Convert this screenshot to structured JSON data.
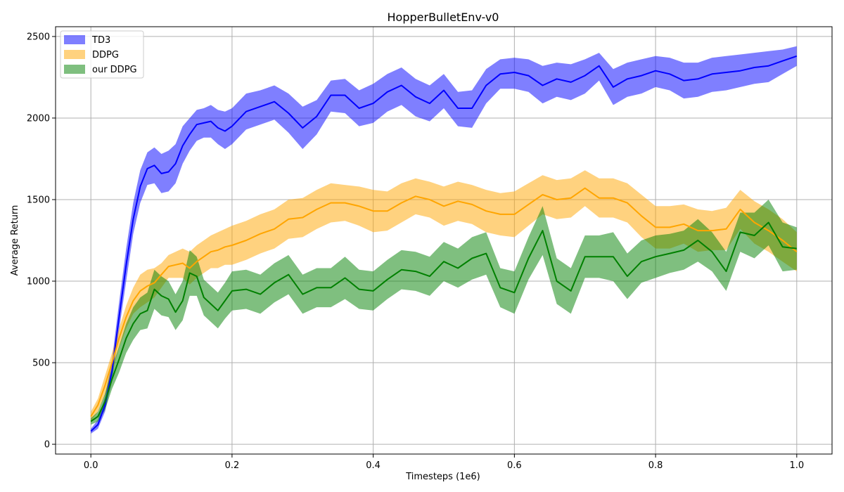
{
  "chart_data": {
    "type": "area",
    "title": "HopperBulletEnv-v0",
    "xlabel": "Timesteps (1e6)",
    "ylabel": "Average Return",
    "xlim": [
      -0.05,
      1.05
    ],
    "ylim": [
      -60,
      2560
    ],
    "xticks": [
      0.0,
      0.2,
      0.4,
      0.6,
      0.8,
      1.0
    ],
    "xtick_labels": [
      "0.0",
      "0.2",
      "0.4",
      "0.6",
      "0.8",
      "1.0"
    ],
    "yticks": [
      0,
      500,
      1000,
      1500,
      2000,
      2500
    ],
    "ytick_labels": [
      "0",
      "500",
      "1000",
      "1500",
      "2000",
      "2500"
    ],
    "grid": true,
    "legend_position": "top-left",
    "series": [
      {
        "name": "TD3",
        "color": "#0000ff",
        "band_color": "#0000ff",
        "band_opacity": 0.5,
        "x": [
          0.0,
          0.01,
          0.02,
          0.03,
          0.04,
          0.05,
          0.06,
          0.07,
          0.08,
          0.09,
          0.1,
          0.11,
          0.12,
          0.13,
          0.14,
          0.15,
          0.16,
          0.17,
          0.18,
          0.19,
          0.2,
          0.22,
          0.24,
          0.26,
          0.28,
          0.3,
          0.32,
          0.34,
          0.36,
          0.38,
          0.4,
          0.42,
          0.44,
          0.46,
          0.48,
          0.5,
          0.52,
          0.54,
          0.56,
          0.58,
          0.6,
          0.62,
          0.64,
          0.66,
          0.68,
          0.7,
          0.72,
          0.74,
          0.76,
          0.78,
          0.8,
          0.82,
          0.84,
          0.86,
          0.88,
          0.9,
          0.92,
          0.94,
          0.96,
          0.98,
          1.0
        ],
        "y": [
          80,
          120,
          240,
          450,
          780,
          1100,
          1380,
          1580,
          1690,
          1710,
          1660,
          1670,
          1720,
          1830,
          1900,
          1960,
          1970,
          1980,
          1940,
          1920,
          1950,
          2040,
          2070,
          2100,
          2030,
          1940,
          2010,
          2140,
          2140,
          2060,
          2090,
          2160,
          2200,
          2130,
          2090,
          2170,
          2060,
          2060,
          2200,
          2270,
          2280,
          2260,
          2200,
          2240,
          2220,
          2260,
          2320,
          2190,
          2240,
          2260,
          2290,
          2270,
          2230,
          2240,
          2270,
          2280,
          2290,
          2310,
          2320,
          2350,
          2380
        ],
        "upper": [
          95,
          150,
          290,
          520,
          870,
          1200,
          1480,
          1680,
          1790,
          1820,
          1780,
          1800,
          1840,
          1950,
          2000,
          2050,
          2060,
          2080,
          2050,
          2040,
          2060,
          2150,
          2170,
          2200,
          2150,
          2070,
          2110,
          2230,
          2240,
          2170,
          2210,
          2270,
          2310,
          2240,
          2200,
          2270,
          2160,
          2170,
          2300,
          2360,
          2370,
          2360,
          2320,
          2340,
          2330,
          2360,
          2400,
          2300,
          2340,
          2360,
          2380,
          2370,
          2340,
          2340,
          2370,
          2380,
          2390,
          2400,
          2410,
          2420,
          2440
        ],
        "lower": [
          65,
          95,
          200,
          390,
          700,
          1000,
          1290,
          1480,
          1590,
          1600,
          1540,
          1550,
          1600,
          1720,
          1800,
          1860,
          1880,
          1880,
          1840,
          1810,
          1840,
          1930,
          1960,
          1990,
          1910,
          1810,
          1900,
          2040,
          2030,
          1950,
          1970,
          2040,
          2080,
          2010,
          1980,
          2060,
          1950,
          1940,
          2090,
          2180,
          2180,
          2160,
          2090,
          2130,
          2110,
          2150,
          2230,
          2080,
          2130,
          2150,
          2190,
          2170,
          2120,
          2130,
          2160,
          2170,
          2190,
          2210,
          2220,
          2270,
          2320
        ]
      },
      {
        "name": "DDPG",
        "color": "#ffa500",
        "band_color": "#ffa500",
        "band_opacity": 0.5,
        "x": [
          0.0,
          0.01,
          0.02,
          0.03,
          0.04,
          0.05,
          0.06,
          0.07,
          0.08,
          0.09,
          0.1,
          0.11,
          0.12,
          0.13,
          0.14,
          0.15,
          0.16,
          0.17,
          0.18,
          0.19,
          0.2,
          0.22,
          0.24,
          0.26,
          0.28,
          0.3,
          0.32,
          0.34,
          0.36,
          0.38,
          0.4,
          0.42,
          0.44,
          0.46,
          0.48,
          0.5,
          0.52,
          0.54,
          0.56,
          0.58,
          0.6,
          0.62,
          0.64,
          0.66,
          0.68,
          0.7,
          0.72,
          0.74,
          0.76,
          0.78,
          0.8,
          0.82,
          0.84,
          0.86,
          0.88,
          0.9,
          0.92,
          0.94,
          0.96,
          0.98,
          1.0
        ],
        "y": [
          170,
          240,
          360,
          500,
          650,
          780,
          880,
          940,
          970,
          990,
          1040,
          1090,
          1100,
          1110,
          1080,
          1120,
          1150,
          1180,
          1190,
          1210,
          1220,
          1250,
          1290,
          1320,
          1380,
          1390,
          1440,
          1480,
          1480,
          1460,
          1430,
          1430,
          1480,
          1520,
          1500,
          1460,
          1490,
          1470,
          1430,
          1410,
          1410,
          1470,
          1530,
          1500,
          1510,
          1570,
          1510,
          1510,
          1480,
          1400,
          1330,
          1330,
          1350,
          1310,
          1310,
          1320,
          1440,
          1360,
          1310,
          1250,
          1180
        ],
        "upper": [
          200,
          280,
          420,
          560,
          710,
          850,
          960,
          1040,
          1070,
          1080,
          1110,
          1160,
          1180,
          1200,
          1180,
          1220,
          1250,
          1280,
          1300,
          1320,
          1340,
          1370,
          1410,
          1440,
          1500,
          1510,
          1560,
          1600,
          1590,
          1580,
          1560,
          1550,
          1600,
          1630,
          1610,
          1580,
          1610,
          1590,
          1560,
          1540,
          1550,
          1600,
          1650,
          1620,
          1630,
          1680,
          1630,
          1630,
          1600,
          1530,
          1460,
          1460,
          1470,
          1440,
          1430,
          1450,
          1560,
          1490,
          1440,
          1380,
          1300
        ],
        "lower": [
          140,
          200,
          300,
          440,
          590,
          710,
          800,
          840,
          870,
          900,
          960,
          1020,
          1020,
          1020,
          980,
          1020,
          1050,
          1080,
          1080,
          1100,
          1100,
          1130,
          1170,
          1200,
          1260,
          1270,
          1320,
          1360,
          1370,
          1340,
          1300,
          1310,
          1360,
          1410,
          1390,
          1340,
          1370,
          1350,
          1300,
          1280,
          1270,
          1340,
          1410,
          1380,
          1390,
          1460,
          1390,
          1390,
          1360,
          1270,
          1200,
          1200,
          1230,
          1180,
          1190,
          1190,
          1320,
          1230,
          1180,
          1120,
          1060
        ]
      },
      {
        "name": "our DDPG",
        "color": "#008000",
        "band_color": "#008000",
        "band_opacity": 0.5,
        "x": [
          0.0,
          0.01,
          0.02,
          0.03,
          0.04,
          0.05,
          0.06,
          0.07,
          0.08,
          0.09,
          0.1,
          0.11,
          0.12,
          0.13,
          0.14,
          0.15,
          0.16,
          0.17,
          0.18,
          0.19,
          0.2,
          0.22,
          0.24,
          0.26,
          0.28,
          0.3,
          0.32,
          0.34,
          0.36,
          0.38,
          0.4,
          0.42,
          0.44,
          0.46,
          0.48,
          0.5,
          0.52,
          0.54,
          0.56,
          0.58,
          0.6,
          0.62,
          0.64,
          0.66,
          0.68,
          0.7,
          0.72,
          0.74,
          0.76,
          0.78,
          0.8,
          0.82,
          0.84,
          0.86,
          0.88,
          0.9,
          0.92,
          0.94,
          0.96,
          0.98,
          1.0
        ],
        "y": [
          140,
          170,
          260,
          400,
          520,
          650,
          740,
          800,
          820,
          950,
          910,
          890,
          810,
          880,
          1050,
          1030,
          900,
          860,
          820,
          880,
          940,
          950,
          920,
          990,
          1040,
          920,
          960,
          960,
          1020,
          950,
          940,
          1010,
          1070,
          1060,
          1030,
          1120,
          1080,
          1140,
          1170,
          960,
          930,
          1140,
          1310,
          1000,
          940,
          1150,
          1150,
          1150,
          1030,
          1120,
          1150,
          1170,
          1190,
          1250,
          1180,
          1060,
          1300,
          1280,
          1360,
          1210,
          1200
        ],
        "upper": [
          160,
          200,
          310,
          470,
          600,
          740,
          840,
          900,
          930,
          1070,
          1030,
          1000,
          920,
          1000,
          1190,
          1150,
          1010,
          970,
          930,
          990,
          1060,
          1070,
          1040,
          1110,
          1160,
          1040,
          1080,
          1080,
          1150,
          1070,
          1060,
          1130,
          1190,
          1180,
          1150,
          1240,
          1200,
          1270,
          1300,
          1080,
          1060,
          1270,
          1460,
          1140,
          1080,
          1280,
          1280,
          1300,
          1170,
          1250,
          1280,
          1290,
          1310,
          1380,
          1300,
          1180,
          1420,
          1420,
          1500,
          1360,
          1330
        ],
        "lower": [
          120,
          140,
          210,
          340,
          440,
          560,
          640,
          700,
          710,
          830,
          790,
          780,
          700,
          760,
          910,
          910,
          790,
          750,
          710,
          770,
          820,
          830,
          800,
          870,
          920,
          800,
          840,
          840,
          890,
          830,
          820,
          890,
          950,
          940,
          910,
          1000,
          960,
          1010,
          1040,
          840,
          800,
          1010,
          1160,
          860,
          800,
          1020,
          1020,
          1000,
          890,
          990,
          1020,
          1050,
          1070,
          1120,
          1060,
          940,
          1180,
          1140,
          1220,
          1060,
          1070
        ]
      }
    ]
  }
}
